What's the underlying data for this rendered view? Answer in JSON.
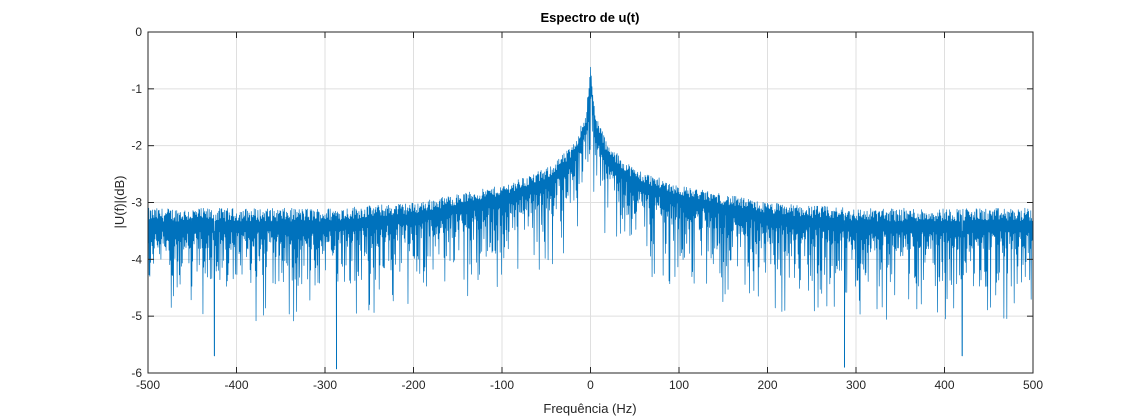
{
  "chart_data": {
    "type": "line",
    "title": "Espectro de u(t)",
    "xlabel": "Frequência (Hz)",
    "ylabel": "|U(f)|(dB)",
    "xlim": [
      -500,
      500
    ],
    "ylim": [
      -6,
      0
    ],
    "xticks": [
      -500,
      -400,
      -300,
      -200,
      -100,
      0,
      100,
      200,
      300,
      400,
      500
    ],
    "yticks": [
      0,
      -1,
      -2,
      -3,
      -4,
      -5,
      -6
    ],
    "xtick_labels": [
      "-500",
      "-400",
      "-300",
      "-200",
      "-100",
      "0",
      "100",
      "200",
      "300",
      "400",
      "500"
    ],
    "ytick_labels": [
      "0",
      "-1",
      "-2",
      "-3",
      "-4",
      "-5",
      "-6"
    ],
    "grid": true,
    "series": [
      {
        "color": "#0072BD",
        "description_points": {
          "x": [
            -500,
            -400,
            -300,
            -200,
            -100,
            -50,
            -20,
            -5,
            0,
            5,
            20,
            50,
            100,
            200,
            300,
            400,
            500
          ],
          "y_upper": [
            -3.1,
            -3.1,
            -3.1,
            -3.0,
            -2.7,
            -2.4,
            -2.0,
            -1.4,
            -0.62,
            -1.4,
            -2.0,
            -2.4,
            -2.7,
            -3.0,
            -3.1,
            -3.1,
            -3.1
          ],
          "y_center": [
            -3.5,
            -3.5,
            -3.5,
            -3.35,
            -3.0,
            -2.75,
            -2.35,
            -1.75,
            -0.9,
            -1.75,
            -2.35,
            -2.75,
            -3.0,
            -3.35,
            -3.5,
            -3.5,
            -3.5
          ],
          "y_lower": [
            -4.6,
            -4.6,
            -4.6,
            -4.4,
            -4.1,
            -3.8,
            -3.3,
            -2.6,
            -1.6,
            -2.6,
            -3.3,
            -3.8,
            -4.1,
            -4.4,
            -4.6,
            -4.6,
            -4.6
          ]
        },
        "notable_minima": [
          {
            "x": -425,
            "y": -5.7
          },
          {
            "x": -287,
            "y": -5.93
          },
          {
            "x": 287,
            "y": -5.9
          },
          {
            "x": 420,
            "y": -5.7
          }
        ]
      }
    ]
  }
}
